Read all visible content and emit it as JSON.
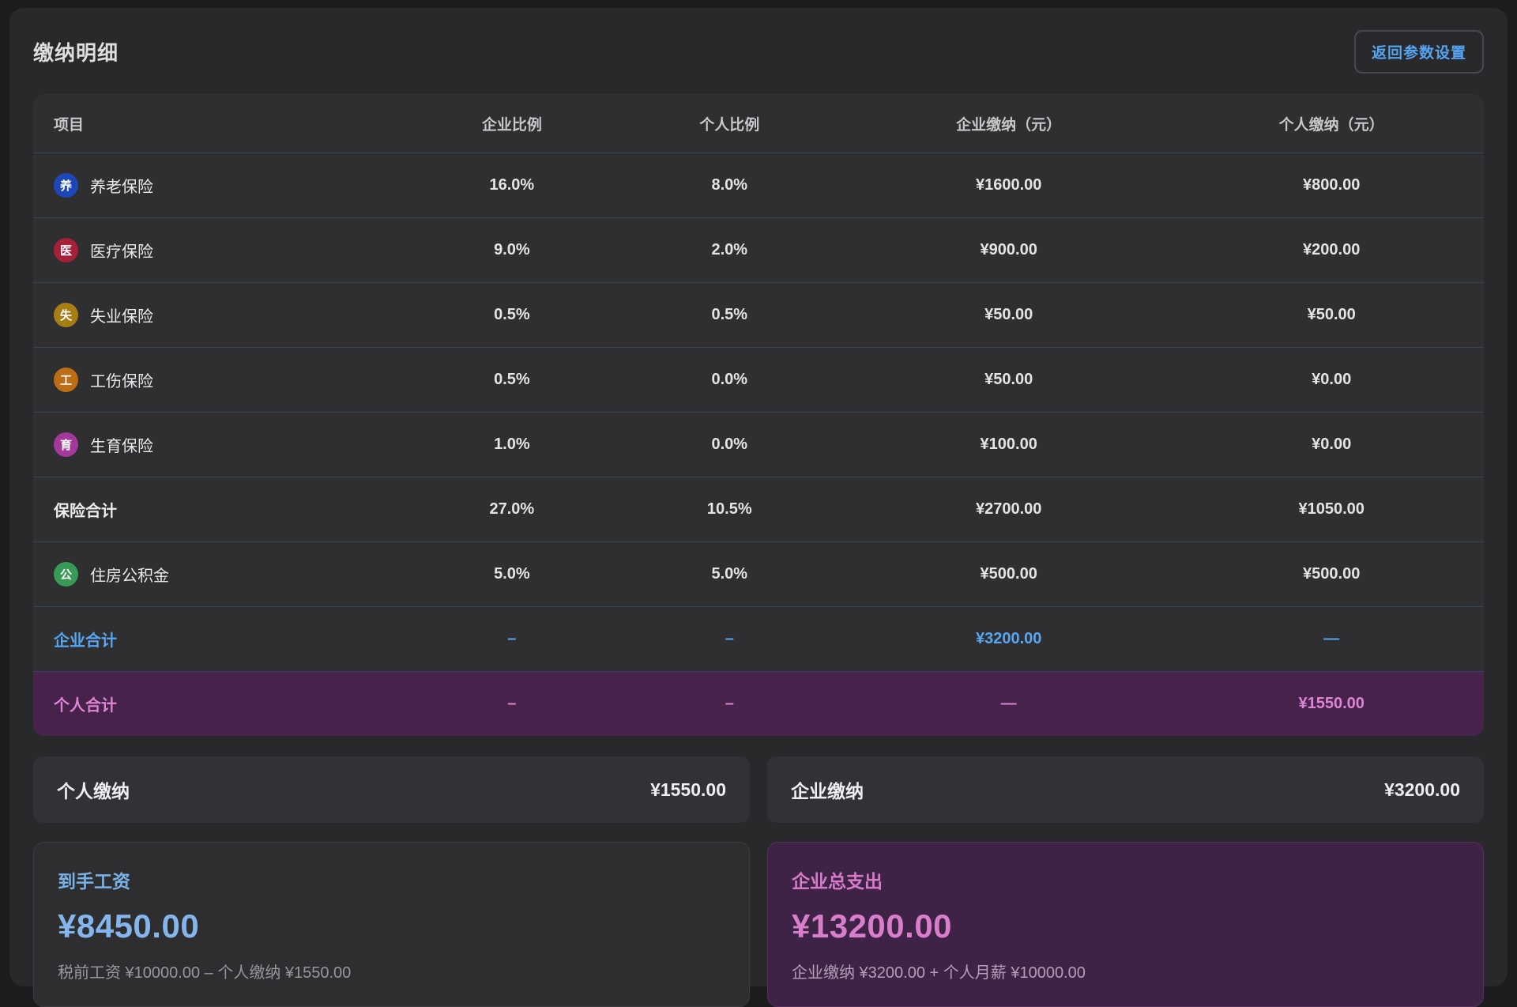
{
  "page": {
    "title": "缴纳明细",
    "back_button": "返回参数设置"
  },
  "colors": {
    "accent_blue": "#57a7f3",
    "accent_pink": "#dc85d4",
    "personal_row_bg": "#47224b",
    "company_card_bg": "#3e2346",
    "pension_icon": "#1d46bb",
    "medical_icon": "#a62039",
    "unemployment_icon": "#a87d14",
    "injury_icon": "#bf6d15",
    "maternity_icon": "#a4399b",
    "housing_fund_icon": "#379a55"
  },
  "table": {
    "headers": [
      "项目",
      "企业比例",
      "个人比例",
      "企业缴纳（元）",
      "个人缴纳（元）"
    ],
    "rows": [
      {
        "icon": "养",
        "icon_name": "pension-icon",
        "icon_color": "#1d46bb",
        "label": "养老保险",
        "corp_ratio": "16.0%",
        "pers_ratio": "8.0%",
        "corp_amount": "¥1600.00",
        "pers_amount": "¥800.00"
      },
      {
        "icon": "医",
        "icon_name": "medical-icon",
        "icon_color": "#a62039",
        "label": "医疗保险",
        "corp_ratio": "9.0%",
        "pers_ratio": "2.0%",
        "corp_amount": "¥900.00",
        "pers_amount": "¥200.00"
      },
      {
        "icon": "失",
        "icon_name": "unemployment-icon",
        "icon_color": "#a87d14",
        "label": "失业保险",
        "corp_ratio": "0.5%",
        "pers_ratio": "0.5%",
        "corp_amount": "¥50.00",
        "pers_amount": "¥50.00"
      },
      {
        "icon": "工",
        "icon_name": "injury-icon",
        "icon_color": "#bf6d15",
        "label": "工伤保险",
        "corp_ratio": "0.5%",
        "pers_ratio": "0.0%",
        "corp_amount": "¥50.00",
        "pers_amount": "¥0.00"
      },
      {
        "icon": "育",
        "icon_name": "maternity-icon",
        "icon_color": "#a4399b",
        "label": "生育保险",
        "corp_ratio": "1.0%",
        "pers_ratio": "0.0%",
        "corp_amount": "¥100.00",
        "pers_amount": "¥0.00"
      },
      {
        "variant": "subtotal",
        "label": "保险合计",
        "corp_ratio": "27.0%",
        "pers_ratio": "10.5%",
        "corp_amount": "¥2700.00",
        "pers_amount": "¥1050.00"
      },
      {
        "icon": "公",
        "icon_name": "housing-fund-icon",
        "icon_color": "#379a55",
        "label": "住房公积金",
        "corp_ratio": "5.0%",
        "pers_ratio": "5.0%",
        "corp_amount": "¥500.00",
        "pers_amount": "¥500.00"
      },
      {
        "variant": "corp",
        "label": "企业合计",
        "corp_ratio": "–",
        "pers_ratio": "–",
        "corp_amount": "¥3200.00",
        "pers_amount": "—"
      },
      {
        "variant": "pers",
        "label": "个人合计",
        "corp_ratio": "–",
        "pers_ratio": "–",
        "corp_amount": "—",
        "pers_amount": "¥1550.00"
      }
    ]
  },
  "summary": {
    "personal": {
      "label": "个人缴纳",
      "value": "¥1550.00"
    },
    "company": {
      "label": "企业缴纳",
      "value": "¥3200.00"
    }
  },
  "cards": {
    "take_home": {
      "title": "到手工资",
      "amount": "¥8450.00",
      "formula": "税前工资 ¥10000.00 – 个人缴纳 ¥1550.00"
    },
    "company_total": {
      "title": "企业总支出",
      "amount": "¥13200.00",
      "formula": "企业缴纳 ¥3200.00 + 个人月薪 ¥10000.00"
    }
  }
}
